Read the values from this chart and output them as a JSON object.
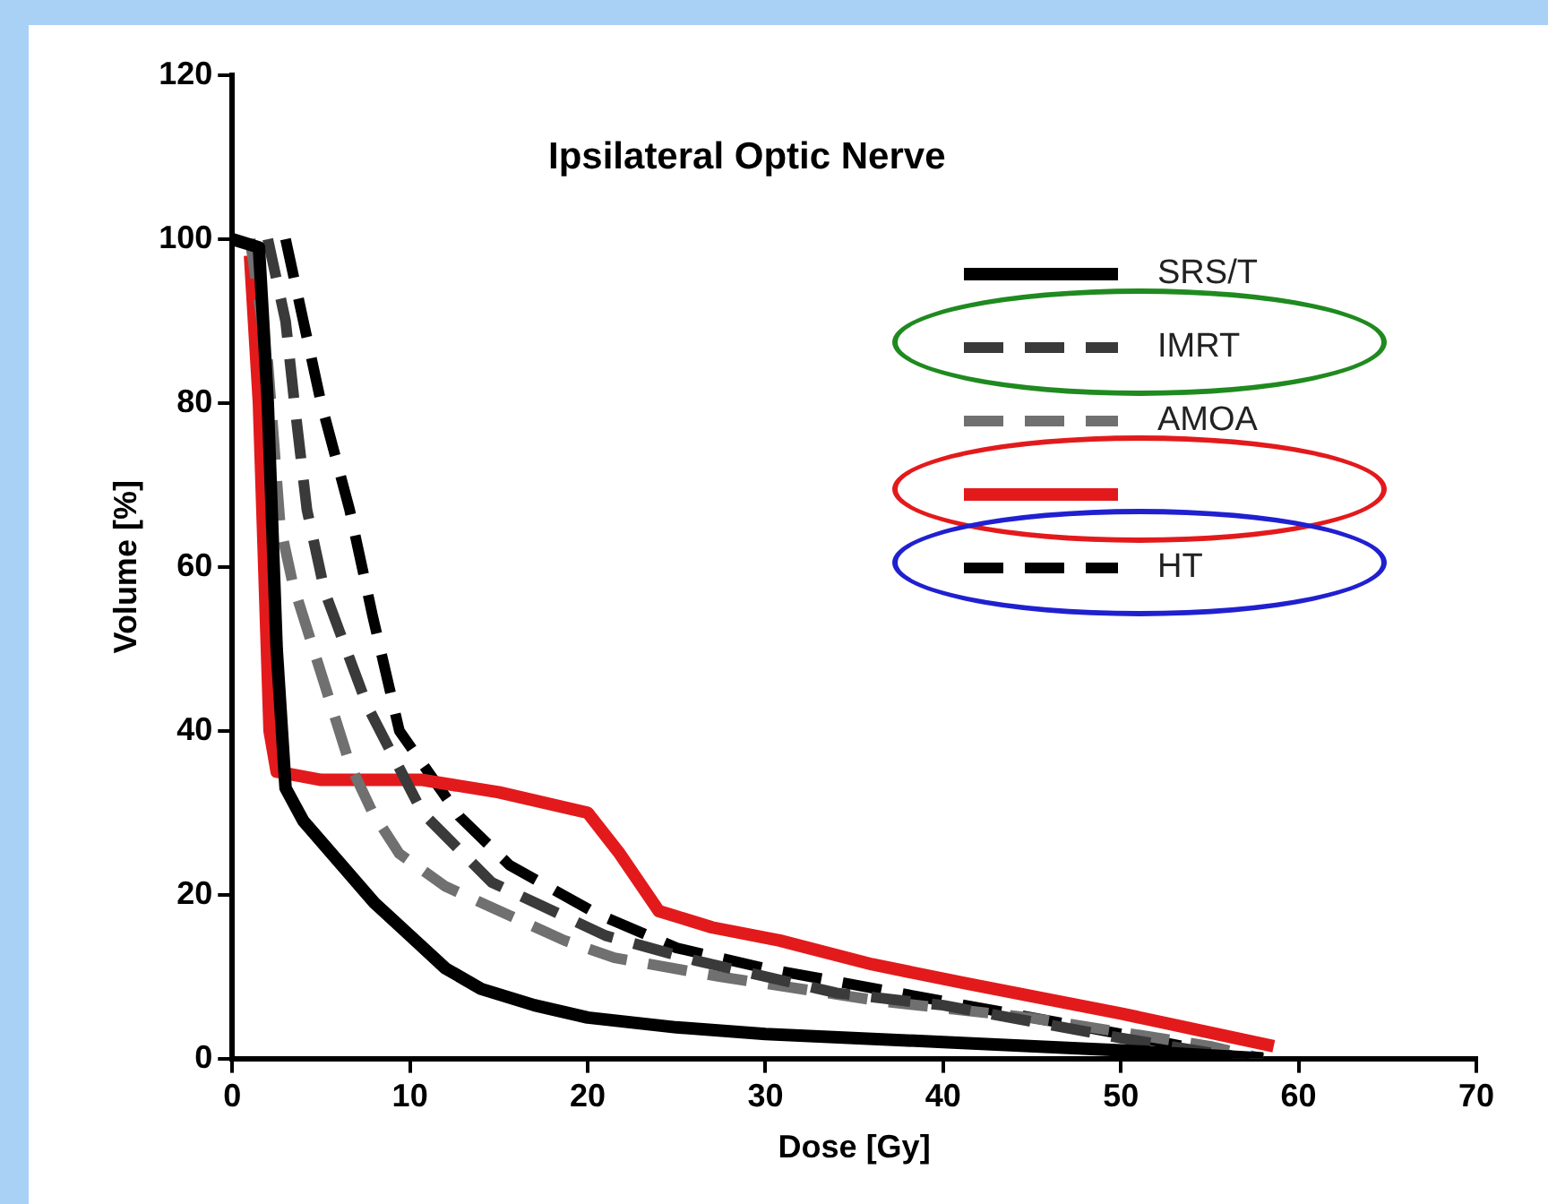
{
  "chart_data": {
    "type": "line",
    "title": "Ipsilateral Optic Nerve",
    "xlabel": "Dose [Gy]",
    "ylabel": "Volume [%]",
    "xlim": [
      0,
      70
    ],
    "xticks": [
      0,
      10,
      20,
      30,
      40,
      50,
      60,
      70
    ],
    "ylim": [
      0,
      120
    ],
    "yticks": [
      0,
      20,
      40,
      60,
      80,
      100,
      120
    ],
    "grid": false,
    "legend": "top right",
    "marker": "none",
    "series": [
      {
        "name": "SRS/T",
        "color": "#000000",
        "line_style": "solid",
        "x": [
          0,
          1.5,
          2,
          2.5,
          3,
          4,
          6,
          8,
          10,
          12,
          14,
          17,
          20,
          25,
          30,
          40,
          50,
          58
        ],
        "values": [
          100,
          99,
          80,
          50,
          33,
          29,
          24,
          19,
          15,
          11,
          8.5,
          6.5,
          5,
          3.8,
          3,
          2,
          1,
          0
        ]
      },
      {
        "name": "IMRT",
        "color": "#3a3a3a",
        "line_style": "dashed",
        "x": [
          2,
          3,
          3.5,
          4.2,
          5.2,
          7.6,
          10.7,
          14.6,
          21,
          26,
          34,
          40,
          50,
          57
        ],
        "values": [
          100,
          90,
          80,
          67,
          57,
          43,
          30,
          21.5,
          15,
          12,
          8,
          6.5,
          2.5,
          0
        ]
      },
      {
        "name": "AMOA",
        "color": "#707070",
        "line_style": "dashed",
        "x": [
          1,
          2,
          2.7,
          3.4,
          6.6,
          7.9,
          9.4,
          12,
          18.7,
          21.5,
          27.4,
          36.5,
          44.8,
          55,
          58
        ],
        "values": [
          100,
          85,
          65,
          58,
          36,
          30,
          25,
          21,
          14.4,
          12.3,
          10,
          7,
          5,
          1.5,
          0
        ]
      },
      {
        "color": "#e31a1c",
        "line_style": "solid",
        "x": [
          1,
          1.5,
          1.8,
          2.1,
          2.5,
          5,
          10.7,
          15,
          20,
          21.8,
          24,
          27,
          30.8,
          36,
          41.2,
          50,
          58.6
        ],
        "values": [
          98,
          80,
          60,
          40,
          35,
          34,
          34,
          32.5,
          30,
          25,
          18,
          16,
          14.4,
          11.5,
          9.2,
          5.5,
          1.5
        ]
      },
      {
        "name": "HT",
        "color": "#000000",
        "line_style": "dashed",
        "x": [
          3,
          4,
          5,
          6.6,
          7.9,
          9.4,
          12.8,
          15.6,
          20.4,
          25,
          30,
          40,
          50,
          57
        ],
        "values": [
          100,
          90,
          80,
          67,
          54,
          40,
          29.5,
          23.6,
          17.8,
          13.5,
          11,
          7,
          3,
          0
        ]
      }
    ]
  }
}
